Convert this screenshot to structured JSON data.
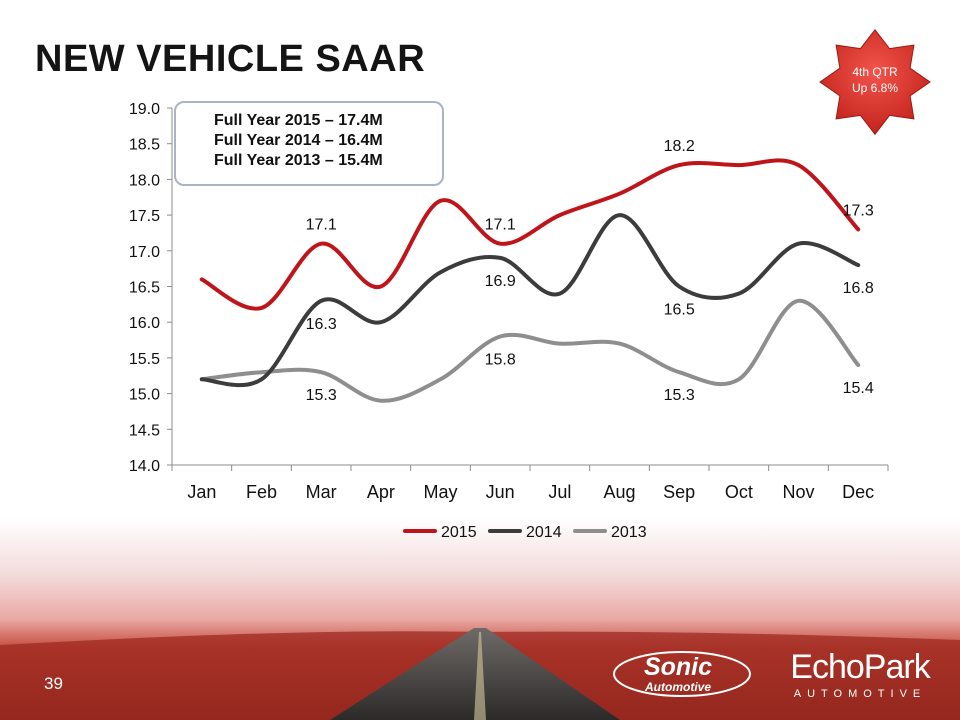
{
  "slide": {
    "title": "NEW VEHICLE SAAR",
    "page_number": "39"
  },
  "callout": {
    "lines": [
      "Full Year 2015 – 17.4M",
      "Full Year 2014 – 16.4M",
      "Full Year 2013 – 15.4M"
    ]
  },
  "badge": {
    "line1": "4th QTR",
    "line2": "Up 6.8%",
    "color": "#e03a33"
  },
  "logos": {
    "sonic_line1": "Sonic",
    "sonic_line2": "Automotive",
    "echopark_name": "EchoPark",
    "echopark_sub": "AUTOMOTIVE"
  },
  "chart_data": {
    "type": "line",
    "title": "",
    "xlabel": "",
    "ylabel": "",
    "categories": [
      "Jan",
      "Feb",
      "Mar",
      "Apr",
      "May",
      "Jun",
      "Jul",
      "Aug",
      "Sep",
      "Oct",
      "Nov",
      "Dec"
    ],
    "ylim": [
      14.0,
      19.0
    ],
    "yticks": [
      "14.0",
      "14.5",
      "15.0",
      "15.5",
      "16.0",
      "16.5",
      "17.0",
      "17.5",
      "18.0",
      "18.5",
      "19.0"
    ],
    "smooth": true,
    "legend_position": "bottom",
    "series": [
      {
        "name": "2015",
        "color": "#c0141b",
        "values": [
          16.6,
          16.2,
          17.1,
          16.5,
          17.7,
          17.1,
          17.5,
          17.8,
          18.2,
          18.2,
          18.2,
          17.3
        ],
        "labels": [
          {
            "index": 2,
            "text": "17.1",
            "pos": "above"
          },
          {
            "index": 5,
            "text": "17.1",
            "pos": "above"
          },
          {
            "index": 8,
            "text": "18.2",
            "pos": "above"
          },
          {
            "index": 11,
            "text": "17.3",
            "pos": "above"
          }
        ]
      },
      {
        "name": "2014",
        "color": "#3c3c3c",
        "values": [
          15.2,
          15.2,
          16.3,
          16.0,
          16.7,
          16.9,
          16.4,
          17.5,
          16.5,
          16.4,
          17.1,
          16.8
        ],
        "labels": [
          {
            "index": 2,
            "text": "16.3",
            "pos": "below"
          },
          {
            "index": 5,
            "text": "16.9",
            "pos": "below"
          },
          {
            "index": 8,
            "text": "16.5",
            "pos": "below"
          },
          {
            "index": 11,
            "text": "16.8",
            "pos": "below"
          }
        ]
      },
      {
        "name": "2013",
        "color": "#8e8e8e",
        "values": [
          15.2,
          15.3,
          15.3,
          14.9,
          15.2,
          15.8,
          15.7,
          15.7,
          15.3,
          15.2,
          16.3,
          15.4
        ],
        "labels": [
          {
            "index": 2,
            "text": "15.3",
            "pos": "below"
          },
          {
            "index": 5,
            "text": "15.8",
            "pos": "below"
          },
          {
            "index": 8,
            "text": "15.3",
            "pos": "below"
          },
          {
            "index": 11,
            "text": "15.4",
            "pos": "below"
          }
        ]
      }
    ]
  }
}
